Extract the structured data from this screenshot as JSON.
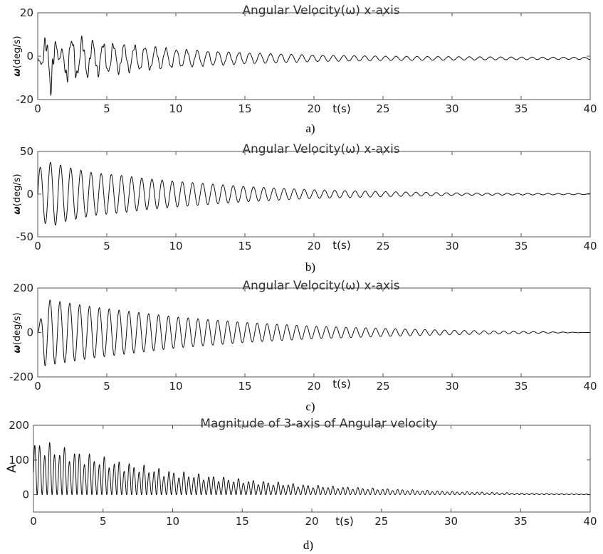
{
  "chart_data": [
    {
      "type": "line",
      "title": "Angular Velocity(ω) x-axis",
      "xlabel": "t(s)",
      "ylabel": "ω(deg/s)",
      "xlim": [
        0,
        40
      ],
      "ylim": [
        -20,
        20
      ],
      "xticks": [
        "0",
        "5",
        "10",
        "15",
        "20",
        "25",
        "30",
        "35",
        "40"
      ],
      "yticks": [
        "20",
        "0",
        "-20"
      ],
      "caption": "a)",
      "series": [
        {
          "x": [
            0,
            1,
            2,
            4,
            6,
            8,
            10,
            15,
            20,
            25,
            30,
            35,
            40
          ],
          "values": [
            0,
            -13,
            9,
            7,
            6,
            5,
            4,
            2.5,
            1.5,
            1,
            0.8,
            0.6,
            0.5
          ],
          "shape": "damped oscillation, amplitude envelope (deg/s)",
          "offset": -1,
          "frequency_hz": 1.32
        }
      ]
    },
    {
      "type": "line",
      "title": "Angular Velocity(ω) x-axis",
      "xlabel": "t(s)",
      "ylabel": "ω(deg/s)",
      "xlim": [
        0,
        40
      ],
      "ylim": [
        -50,
        50
      ],
      "xticks": [
        "0",
        "5",
        "10",
        "15",
        "20",
        "25",
        "30",
        "35",
        "40"
      ],
      "yticks": [
        "50",
        "0",
        "-50"
      ],
      "caption": "b)",
      "series": [
        {
          "x": [
            0,
            1,
            2,
            4,
            6,
            8,
            10,
            15,
            20,
            25,
            30,
            35,
            40
          ],
          "values": [
            30,
            38,
            32,
            25,
            22,
            18,
            15,
            9,
            5,
            3,
            1.5,
            1,
            0.5
          ],
          "shape": "damped oscillation, amplitude envelope (deg/s)",
          "offset": 0,
          "frequency_hz": 1.36
        }
      ]
    },
    {
      "type": "line",
      "title": "Angular Velocity(ω) x-axis",
      "xlabel": "t(s)",
      "ylabel": "ω(deg/s)",
      "xlim": [
        0,
        40
      ],
      "ylim": [
        -200,
        200
      ],
      "xticks": [
        "0",
        "5",
        "10",
        "15",
        "20",
        "25",
        "30",
        "35",
        "40"
      ],
      "yticks": [
        "200",
        "0",
        "-200"
      ],
      "caption": "c)",
      "series": [
        {
          "x": [
            0,
            0.5,
            2,
            4,
            6,
            8,
            10,
            15,
            20,
            25,
            30,
            35,
            40
          ],
          "values": [
            0,
            150,
            135,
            115,
            100,
            85,
            70,
            45,
            28,
            18,
            10,
            5,
            0
          ],
          "shape": "damped oscillation, amplitude envelope (deg/s)",
          "offset": 0,
          "frequency_hz": 1.4
        }
      ]
    },
    {
      "type": "line",
      "title": "Magnitude of 3-axis of Angular velocity",
      "xlabel": "t(s)",
      "ylabel": "A",
      "xlim": [
        0,
        40
      ],
      "ylim": [
        -50,
        200
      ],
      "xticks": [
        "0",
        "5",
        "10",
        "15",
        "20",
        "25",
        "30",
        "35",
        "40"
      ],
      "yticks": [
        "200",
        "100",
        "0"
      ],
      "caption": "d)",
      "series": [
        {
          "x": [
            0,
            0.5,
            2,
            4,
            6,
            8,
            10,
            15,
            20,
            25,
            30,
            35,
            40
          ],
          "values": [
            150,
            160,
            140,
            120,
            100,
            85,
            70,
            45,
            28,
            18,
            10,
            5,
            2
          ],
          "shape": "rectified oscillation, peak envelope",
          "offset": 0,
          "frequency_hz": 2.8
        }
      ]
    }
  ]
}
